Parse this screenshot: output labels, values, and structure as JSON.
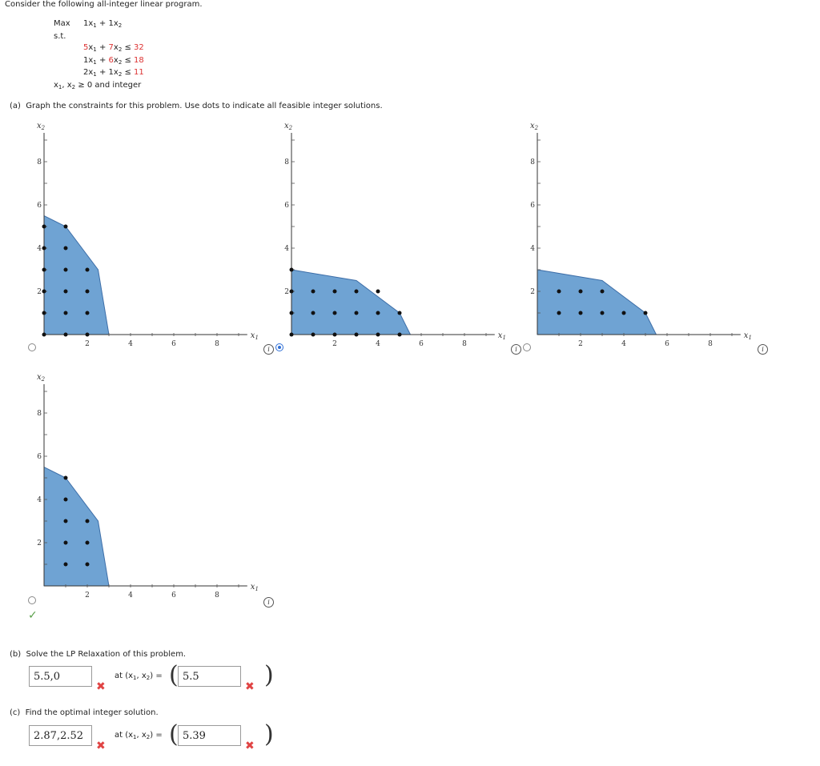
{
  "intro": "Consider the following all-integer linear program.",
  "lp": {
    "max_label": "Max",
    "objective": [
      "1x",
      "1",
      " + ",
      "1x",
      "2"
    ],
    "st_label": "s.t.",
    "constraints": [
      {
        "a": "5",
        "b": "7",
        "rhs": "32"
      },
      {
        "a": "1",
        "b": "6",
        "rhs": "18"
      },
      {
        "a": "2",
        "b": "1",
        "rhs": "11"
      }
    ],
    "nonneg": "≥ 0 and integer"
  },
  "part_a": {
    "label": "(a)",
    "text": "Graph the constraints for this problem. Use dots to indicate all feasible integer solutions."
  },
  "axis": {
    "x_label": "x",
    "y_label": "x",
    "x_ticks": [
      "2",
      "4",
      "6",
      "8"
    ],
    "y_ticks": [
      "2",
      "4",
      "6",
      "8"
    ]
  },
  "graph_options": [
    {
      "name": "option-1",
      "selected": false
    },
    {
      "name": "option-2",
      "selected": true
    },
    {
      "name": "option-3",
      "selected": false
    },
    {
      "name": "option-4",
      "selected": false
    }
  ],
  "chart_data": [
    {
      "type": "scatter",
      "title": "",
      "xlim": [
        0,
        9
      ],
      "ylim": [
        0,
        9
      ],
      "region": [
        [
          0,
          0
        ],
        [
          0,
          5.5
        ],
        [
          1,
          5
        ],
        [
          2.5,
          3
        ],
        [
          3,
          0
        ]
      ],
      "points": [
        [
          0,
          0
        ],
        [
          1,
          0
        ],
        [
          2,
          0
        ],
        [
          0,
          1
        ],
        [
          1,
          1
        ],
        [
          2,
          1
        ],
        [
          0,
          2
        ],
        [
          1,
          2
        ],
        [
          2,
          2
        ],
        [
          0,
          3
        ],
        [
          1,
          3
        ],
        [
          2,
          3
        ],
        [
          0,
          4
        ],
        [
          1,
          4
        ],
        [
          0,
          5
        ],
        [
          1,
          5
        ]
      ]
    },
    {
      "type": "scatter",
      "title": "",
      "xlim": [
        0,
        9
      ],
      "ylim": [
        0,
        9
      ],
      "region": [
        [
          0,
          0
        ],
        [
          0,
          3
        ],
        [
          3,
          2.5
        ],
        [
          5,
          1
        ],
        [
          5.5,
          0
        ]
      ],
      "points": [
        [
          0,
          0
        ],
        [
          1,
          0
        ],
        [
          2,
          0
        ],
        [
          3,
          0
        ],
        [
          4,
          0
        ],
        [
          5,
          0
        ],
        [
          0,
          1
        ],
        [
          1,
          1
        ],
        [
          2,
          1
        ],
        [
          3,
          1
        ],
        [
          4,
          1
        ],
        [
          5,
          1
        ],
        [
          0,
          2
        ],
        [
          1,
          2
        ],
        [
          2,
          2
        ],
        [
          3,
          2
        ],
        [
          4,
          2
        ],
        [
          0,
          3
        ]
      ]
    },
    {
      "type": "scatter",
      "title": "",
      "xlim": [
        0,
        9
      ],
      "ylim": [
        0,
        9
      ],
      "region": [
        [
          0,
          0
        ],
        [
          0,
          3
        ],
        [
          3,
          2.5
        ],
        [
          5,
          1
        ],
        [
          5.5,
          0
        ]
      ],
      "points": [
        [
          1,
          1
        ],
        [
          2,
          1
        ],
        [
          3,
          1
        ],
        [
          4,
          1
        ],
        [
          5,
          1
        ],
        [
          1,
          2
        ],
        [
          2,
          2
        ],
        [
          3,
          2
        ]
      ]
    },
    {
      "type": "scatter",
      "title": "",
      "xlim": [
        0,
        9
      ],
      "ylim": [
        0,
        9
      ],
      "region": [
        [
          0,
          0
        ],
        [
          0,
          5.5
        ],
        [
          1,
          5
        ],
        [
          2.5,
          3
        ],
        [
          3,
          0
        ]
      ],
      "points": [
        [
          1,
          1
        ],
        [
          2,
          1
        ],
        [
          1,
          2
        ],
        [
          2,
          2
        ],
        [
          1,
          3
        ],
        [
          2,
          3
        ],
        [
          1,
          4
        ],
        [
          1,
          5
        ]
      ]
    }
  ],
  "part_b": {
    "label": "(b)",
    "text": "Solve the LP Relaxation of this problem.",
    "value_answer": "5.5,0",
    "at_label": "at (x",
    "point_answer": "5.5"
  },
  "part_c": {
    "label": "(c)",
    "text": "Find the optimal integer solution.",
    "value_answer": "2.87,2.52",
    "at_label": "at (x",
    "point_answer": "5.39"
  },
  "icons": {
    "info": "i",
    "check": "✓",
    "wrong": "✖"
  }
}
